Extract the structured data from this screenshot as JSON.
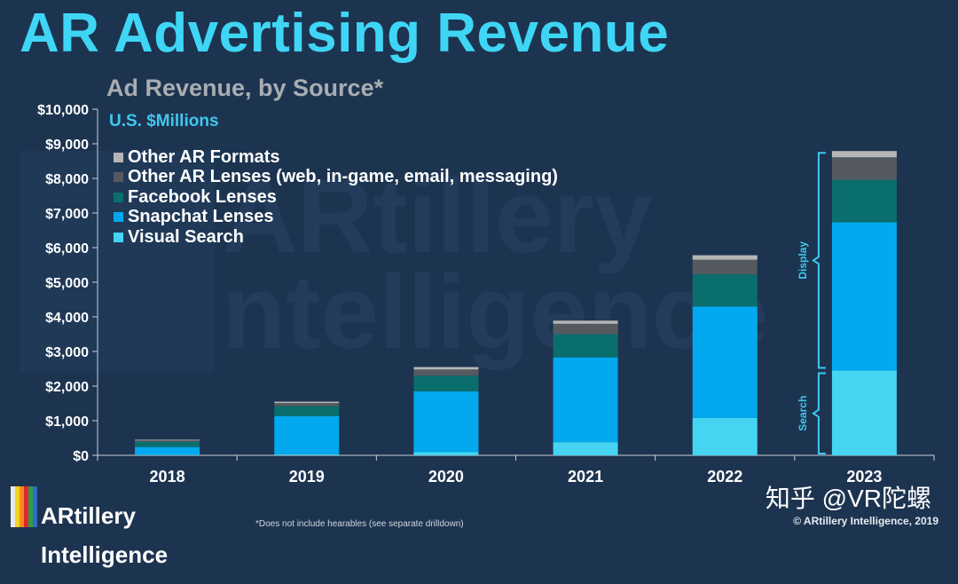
{
  "title": "AR Advertising Revenue",
  "subtitle": "Ad Revenue, by Source*",
  "units_label": "U.S. $Millions",
  "watermark_text": [
    "ARtillery",
    "ntelligence"
  ],
  "colors": {
    "background": "#1d3450",
    "title": "#3fd6f5",
    "axis": "#c9d0d8",
    "other_ar_formats": "#b6b6b6",
    "other_ar_lenses": "#555a60",
    "facebook_lenses": "#0a6e6c",
    "snapchat_lenses": "#03a9ee",
    "visual_search": "#46d4f3",
    "bracket": "#3fc8ee"
  },
  "legend": [
    {
      "label": "Other AR Formats",
      "color": "#b6b6b6"
    },
    {
      "label": "Other AR Lenses (web, in-game, email, messaging)",
      "color": "#555a60"
    },
    {
      "label": "Facebook Lenses",
      "color": "#0a6e6c"
    },
    {
      "label": "Snapchat Lenses",
      "color": "#03a9ee"
    },
    {
      "label": "Visual Search",
      "color": "#46d4f3"
    }
  ],
  "brackets": [
    {
      "label": "Display"
    },
    {
      "label": "Search"
    }
  ],
  "chart_data": {
    "type": "bar",
    "stacked": true,
    "categories": [
      "2018",
      "2019",
      "2020",
      "2021",
      "2022",
      "2023"
    ],
    "series": [
      {
        "name": "Visual Search",
        "values": [
          20,
          30,
          90,
          380,
          1080,
          2450
        ]
      },
      {
        "name": "Snapchat Lenses",
        "values": [
          220,
          1100,
          1760,
          2450,
          3220,
          4280
        ]
      },
      {
        "name": "Facebook Lenses",
        "values": [
          150,
          290,
          450,
          670,
          930,
          1230
        ]
      },
      {
        "name": "Other AR Lenses (web, in-game, email, messaging)",
        "values": [
          40,
          90,
          180,
          300,
          420,
          650
        ]
      },
      {
        "name": "Other AR Formats",
        "values": [
          20,
          40,
          70,
          90,
          130,
          180
        ]
      }
    ],
    "ylim": [
      0,
      10000
    ],
    "yticks": [
      0,
      1000,
      2000,
      3000,
      4000,
      5000,
      6000,
      7000,
      8000,
      9000,
      10000
    ],
    "ytick_labels": [
      "$0",
      "$1,000",
      "$2,000",
      "$3,000",
      "$4,000",
      "$5,000",
      "$6,000",
      "$7,000",
      "$8,000",
      "$9,000",
      "$10,000"
    ],
    "grid": false,
    "legend_position": "top-left"
  },
  "footnote": "*Does not include hearables (see separate drilldown)",
  "copyright": "© ARtillery Intelligence, 2019",
  "brand": {
    "line1": "ARtillery",
    "line2": "Intelligence"
  },
  "overlay_watermark": "知乎 @VR陀螺"
}
